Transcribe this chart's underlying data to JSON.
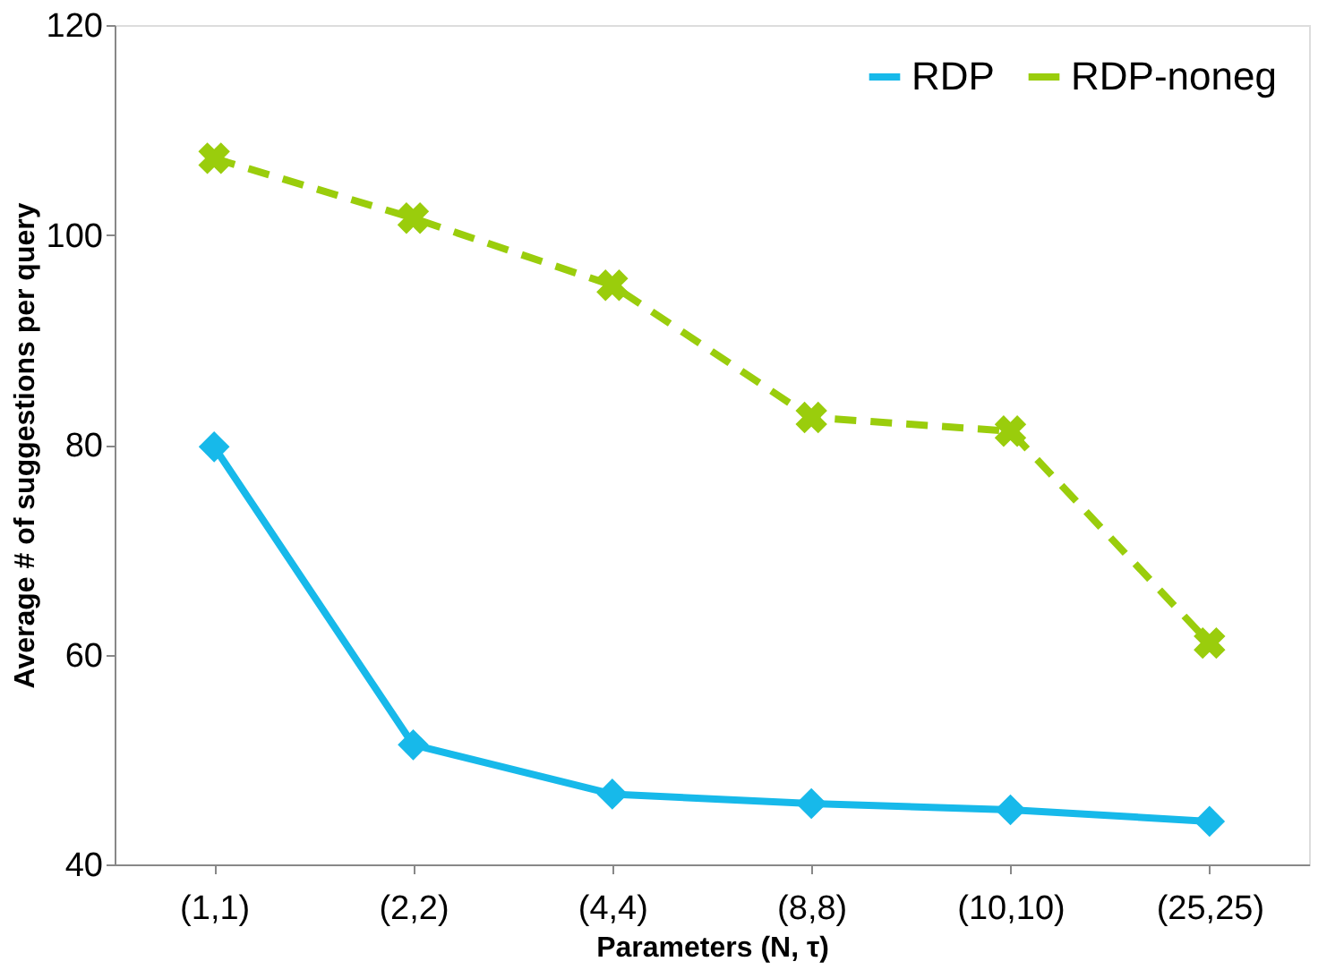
{
  "chart_data": {
    "type": "line",
    "xlabel": "Parameters (N, τ)",
    "ylabel": "Average # of suggestions per query",
    "categories": [
      "(1,1)",
      "(2,2)",
      "(4,4)",
      "(8,8)",
      "(10,10)",
      "(25,25)"
    ],
    "series": [
      {
        "name": "RDP",
        "color": "#17b9ea",
        "values": [
          79.8,
          51.4,
          46.7,
          45.8,
          45.2,
          44.1
        ],
        "marker": "diamond",
        "line_style": "solid"
      },
      {
        "name": "RDP-noneg",
        "color": "#9acd0c",
        "values": [
          107.3,
          101.6,
          95.2,
          82.6,
          81.3,
          61.1
        ],
        "marker": "cross",
        "line_style": "dashed"
      }
    ],
    "ylim": [
      40,
      120
    ],
    "yticks": [
      40,
      60,
      80,
      100,
      120
    ],
    "grid": false,
    "legend": "top right"
  }
}
